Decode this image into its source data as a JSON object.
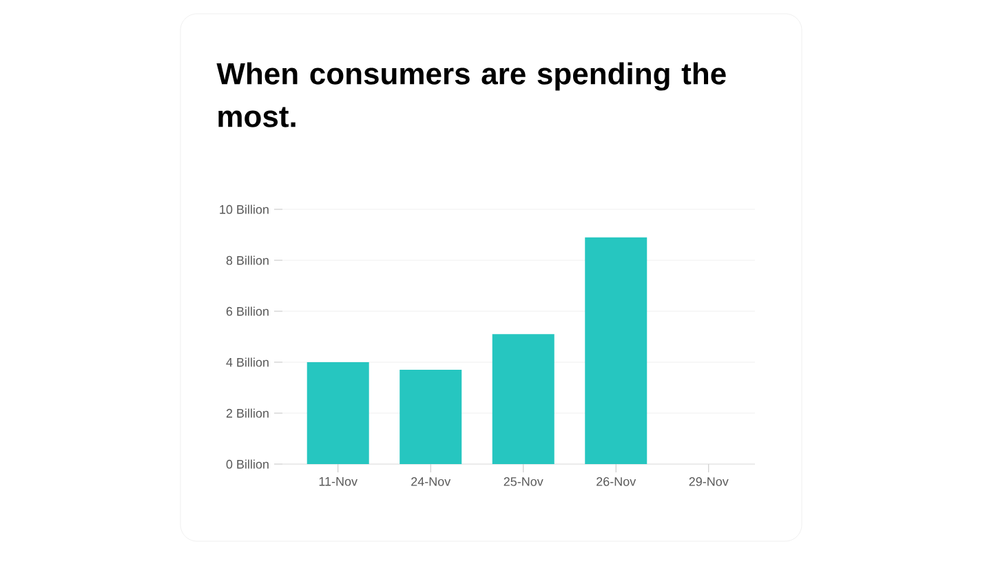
{
  "chart_data": {
    "type": "bar",
    "title": "When consumers are spending the most.",
    "categories": [
      "11-Nov",
      "24-Nov",
      "25-Nov",
      "26-Nov",
      "29-Nov"
    ],
    "values": [
      4.0,
      3.7,
      5.1,
      8.9,
      null
    ],
    "color": "#26c6c0",
    "ylim": [
      0,
      10
    ],
    "yticks": [
      {
        "value": 0,
        "label": "0 Billion"
      },
      {
        "value": 2,
        "label": "2 Billion"
      },
      {
        "value": 4,
        "label": "4 Billion"
      },
      {
        "value": 6,
        "label": "6 Billion"
      },
      {
        "value": 8,
        "label": "8 Billion"
      },
      {
        "value": 10,
        "label": "10 Billion"
      }
    ],
    "grid": "y"
  }
}
